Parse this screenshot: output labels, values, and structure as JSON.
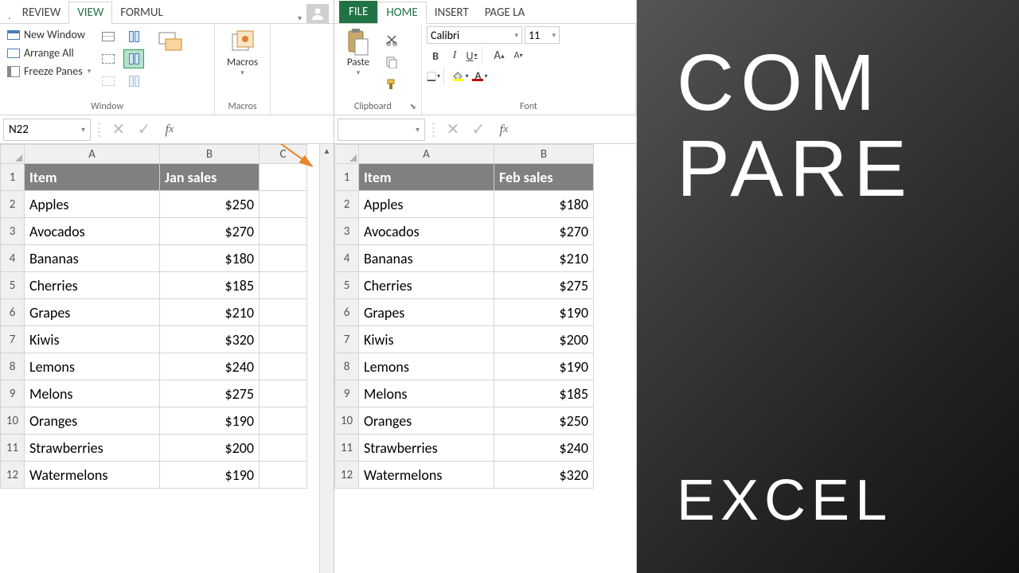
{
  "left": {
    "tabs": {
      "review": "REVIEW",
      "view": "VIEW",
      "formul": "FORMUL"
    },
    "ribbon": {
      "window": {
        "new_window": "New Window",
        "arrange_all": "Arrange All",
        "freeze_panes": "Freeze Panes",
        "label": "Window"
      },
      "macros": {
        "btn": "Macros",
        "label": "Macros"
      }
    },
    "namebox": "N22",
    "grid": {
      "cols": [
        "A",
        "B",
        "C"
      ],
      "header": {
        "item": "Item",
        "sales": "Jan sales"
      },
      "rows": [
        {
          "n": "2",
          "item": "Apples",
          "val": "$250"
        },
        {
          "n": "3",
          "item": "Avocados",
          "val": "$270"
        },
        {
          "n": "4",
          "item": "Bananas",
          "val": "$180"
        },
        {
          "n": "5",
          "item": "Cherries",
          "val": "$185"
        },
        {
          "n": "6",
          "item": "Grapes",
          "val": "$210"
        },
        {
          "n": "7",
          "item": "Kiwis",
          "val": "$320"
        },
        {
          "n": "8",
          "item": "Lemons",
          "val": "$240"
        },
        {
          "n": "9",
          "item": "Melons",
          "val": "$275"
        },
        {
          "n": "10",
          "item": "Oranges",
          "val": "$190"
        },
        {
          "n": "11",
          "item": "Strawberries",
          "val": "$200"
        },
        {
          "n": "12",
          "item": "Watermelons",
          "val": "$190"
        }
      ]
    }
  },
  "right": {
    "tabs": {
      "file": "FILE",
      "home": "HOME",
      "insert": "INSERT",
      "pagela": "PAGE LA"
    },
    "ribbon": {
      "clipboard": {
        "paste": "Paste",
        "label": "Clipboard"
      },
      "font": {
        "name": "Calibri",
        "size": "11",
        "bold": "B",
        "italic": "I",
        "underline": "U",
        "label": "Font",
        "fill_color": "#ffff00",
        "font_color": "#c00000"
      }
    },
    "grid": {
      "cols": [
        "A",
        "B"
      ],
      "header": {
        "item": "Item",
        "sales": "Feb sales"
      },
      "rows": [
        {
          "n": "2",
          "item": "Apples",
          "val": "$180"
        },
        {
          "n": "3",
          "item": "Avocados",
          "val": "$270"
        },
        {
          "n": "4",
          "item": "Bananas",
          "val": "$210"
        },
        {
          "n": "5",
          "item": "Cherries",
          "val": "$275"
        },
        {
          "n": "6",
          "item": "Grapes",
          "val": "$190"
        },
        {
          "n": "7",
          "item": "Kiwis",
          "val": "$200"
        },
        {
          "n": "8",
          "item": "Lemons",
          "val": "$190"
        },
        {
          "n": "9",
          "item": "Melons",
          "val": "$185"
        },
        {
          "n": "10",
          "item": "Oranges",
          "val": "$250"
        },
        {
          "n": "11",
          "item": "Strawberries",
          "val": "$240"
        },
        {
          "n": "12",
          "item": "Watermelons",
          "val": "$320"
        }
      ]
    }
  },
  "title": {
    "line1": "COM",
    "line2": "PARE",
    "line3": "EXCEL"
  },
  "colors": {
    "excel_green": "#217346",
    "header_gray": "#808080",
    "arrow": "#e8842a"
  }
}
